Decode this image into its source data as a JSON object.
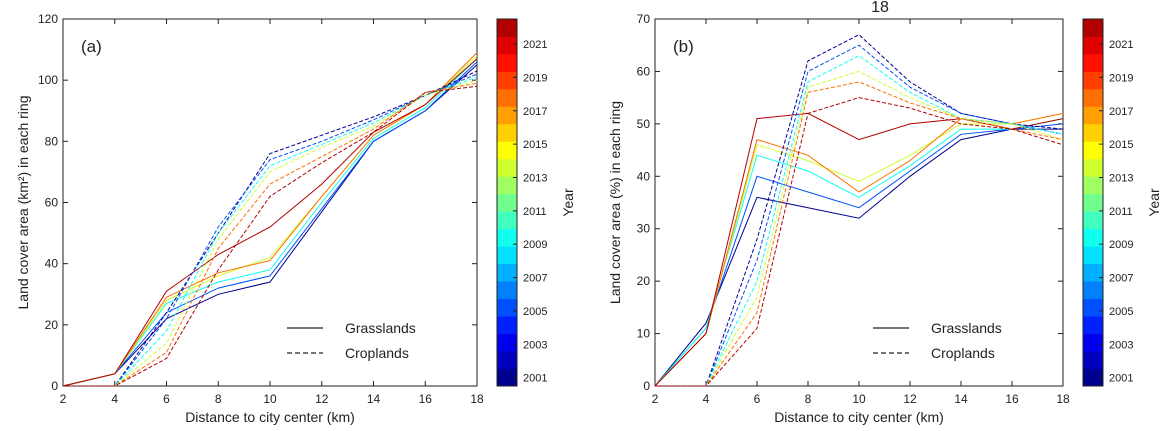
{
  "page_top_text": "18",
  "chart_data": [
    {
      "type": "line",
      "panel_label": "(a)",
      "xlabel": "Distance to city center (km)",
      "ylabel": "Land cover area (km²) in each ring",
      "xlim": [
        2,
        18
      ],
      "ylim": [
        0,
        120
      ],
      "x_ticks": [
        2,
        4,
        6,
        8,
        10,
        12,
        14,
        16,
        18
      ],
      "y_ticks": [
        0,
        20,
        40,
        60,
        80,
        100,
        120
      ],
      "x": [
        2,
        4,
        6,
        8,
        10,
        12,
        14,
        16,
        18
      ],
      "legend": {
        "placement": "lower-right",
        "entries": [
          "Grasslands",
          "Croplands"
        ]
      },
      "series_groups": [
        {
          "name": "Grasslands",
          "linestyle": "solid",
          "series": [
            {
              "year": 2001,
              "values": [
                0,
                4,
                22,
                30,
                34,
                57,
                80,
                90,
                105
              ]
            },
            {
              "year": 2005,
              "values": [
                0,
                4,
                24,
                32,
                36,
                58,
                80,
                90,
                106
              ]
            },
            {
              "year": 2009,
              "values": [
                0,
                4,
                27,
                34,
                38,
                60,
                81,
                91,
                107
              ]
            },
            {
              "year": 2013,
              "values": [
                0,
                4,
                28,
                36,
                42,
                62,
                82,
                92,
                108
              ]
            },
            {
              "year": 2017,
              "values": [
                0,
                4,
                29,
                37,
                41,
                62,
                82,
                92,
                109
              ]
            },
            {
              "year": 2021,
              "values": [
                0,
                4,
                31,
                43,
                52,
                66,
                83,
                92,
                107
              ]
            }
          ]
        },
        {
          "name": "Croplands",
          "linestyle": "dashed",
          "series": [
            {
              "year": 2001,
              "values": [
                0,
                0,
                24,
                50,
                76,
                82,
                88,
                95,
                103
              ]
            },
            {
              "year": 2005,
              "values": [
                0,
                0,
                22,
                52,
                74,
                80,
                87,
                95,
                102
              ]
            },
            {
              "year": 2009,
              "values": [
                0,
                0,
                18,
                50,
                72,
                79,
                86,
                95,
                101
              ]
            },
            {
              "year": 2013,
              "values": [
                0,
                0,
                14,
                48,
                70,
                78,
                85,
                95,
                100
              ]
            },
            {
              "year": 2017,
              "values": [
                0,
                0,
                11,
                45,
                66,
                75,
                84,
                96,
                99
              ]
            },
            {
              "year": 2021,
              "values": [
                0,
                0,
                9,
                38,
                62,
                73,
                83,
                96,
                98
              ]
            }
          ]
        }
      ]
    },
    {
      "type": "line",
      "panel_label": "(b)",
      "xlabel": "Distance to city center (km)",
      "ylabel": "Land cover area (%) in each ring",
      "xlim": [
        2,
        18
      ],
      "ylim": [
        0,
        70
      ],
      "x_ticks": [
        2,
        4,
        6,
        8,
        10,
        12,
        14,
        16,
        18
      ],
      "y_ticks": [
        0,
        10,
        20,
        30,
        40,
        50,
        60,
        70
      ],
      "x": [
        2,
        4,
        6,
        8,
        10,
        12,
        14,
        16,
        18
      ],
      "legend": {
        "placement": "lower-right",
        "entries": [
          "Grasslands",
          "Croplands"
        ]
      },
      "series_groups": [
        {
          "name": "Grasslands",
          "linestyle": "solid",
          "series": [
            {
              "year": 2001,
              "values": [
                0,
                12,
                36,
                34,
                32,
                40,
                47,
                49,
                49
              ]
            },
            {
              "year": 2005,
              "values": [
                0,
                11,
                40,
                37,
                34,
                41,
                48,
                49,
                50
              ]
            },
            {
              "year": 2009,
              "values": [
                0,
                11,
                44,
                41,
                36,
                42,
                49,
                49,
                51
              ]
            },
            {
              "year": 2013,
              "values": [
                0,
                10,
                46,
                43,
                39,
                44,
                50,
                50,
                52
              ]
            },
            {
              "year": 2017,
              "values": [
                0,
                10,
                47,
                44,
                37,
                43,
                51,
                50,
                52
              ]
            },
            {
              "year": 2021,
              "values": [
                0,
                10,
                51,
                52,
                47,
                50,
                51,
                49,
                51
              ]
            }
          ]
        },
        {
          "name": "Croplands",
          "linestyle": "dashed",
          "series": [
            {
              "year": 2001,
              "values": [
                0,
                0,
                28,
                62,
                67,
                58,
                52,
                50,
                49
              ]
            },
            {
              "year": 2005,
              "values": [
                0,
                0,
                24,
                60,
                65,
                57,
                52,
                50,
                48
              ]
            },
            {
              "year": 2009,
              "values": [
                0,
                0,
                20,
                58,
                63,
                56,
                51,
                50,
                48
              ]
            },
            {
              "year": 2013,
              "values": [
                0,
                0,
                17,
                57,
                60,
                55,
                51,
                50,
                47
              ]
            },
            {
              "year": 2017,
              "values": [
                0,
                0,
                14,
                56,
                58,
                54,
                51,
                49,
                47
              ]
            },
            {
              "year": 2021,
              "values": [
                0,
                0,
                11,
                52,
                55,
                53,
                50,
                49,
                46
              ]
            }
          ]
        }
      ]
    }
  ],
  "colorbar": {
    "label": "Year",
    "min_year": 2001,
    "max_year": 2022,
    "tick_labels": [
      "2001",
      "2003",
      "2005",
      "2007",
      "2009",
      "2011",
      "2013",
      "2015",
      "2017",
      "2019",
      "2021"
    ],
    "colors": [
      "#00008f",
      "#0000bf",
      "#0000ef",
      "#0020ff",
      "#0050ff",
      "#0080ff",
      "#00b0ff",
      "#00e0ff",
      "#10ffef",
      "#40ffbf",
      "#70ff8f",
      "#a0ff60",
      "#d0ff30",
      "#ffff00",
      "#ffd000",
      "#ffa000",
      "#ff7000",
      "#ff4000",
      "#ff1000",
      "#e00000",
      "#b00000"
    ]
  }
}
